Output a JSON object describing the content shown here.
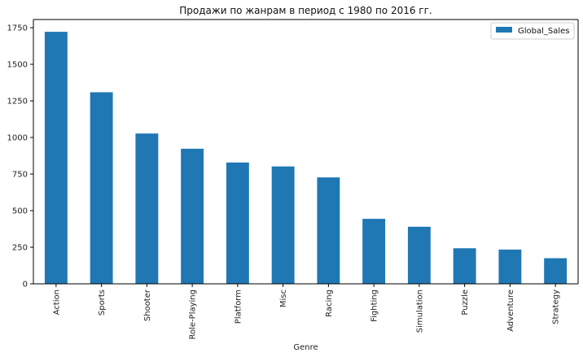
{
  "chart_data": {
    "type": "bar",
    "title": "Продажи по жанрам в период с 1980 по 2016 гг.",
    "xlabel": "Genre",
    "ylabel": "",
    "categories": [
      "Action",
      "Sports",
      "Shooter",
      "Role-Playing",
      "Platform",
      "Misc",
      "Racing",
      "Fighting",
      "Simulation",
      "Puzzle",
      "Adventure",
      "Strategy"
    ],
    "series": [
      {
        "name": "Global_Sales",
        "values": [
          1722,
          1309,
          1027,
          923,
          829,
          802,
          727,
          444,
          390,
          243,
          234,
          175
        ]
      }
    ],
    "ylim": [
      0,
      1806
    ],
    "yticks": [
      0,
      250,
      500,
      750,
      1000,
      1250,
      1500,
      1750
    ],
    "ytick_labels": [
      "0",
      "250",
      "500",
      "750",
      "1000",
      "1250",
      "1500",
      "1750"
    ],
    "legend_position": "top-right",
    "grid": false,
    "colors": {
      "bar": "#1f77b4",
      "axis": "#000000",
      "text": "#222222",
      "legend_border": "#cccccc"
    }
  }
}
